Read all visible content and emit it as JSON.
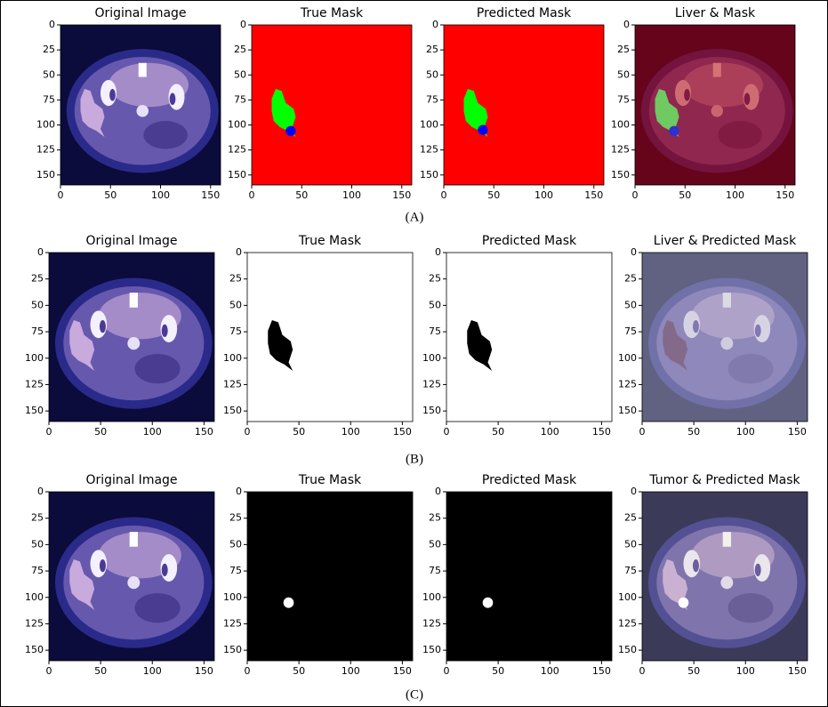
{
  "axes": {
    "xticks": [
      0,
      50,
      100,
      150
    ],
    "yticks": [
      0,
      25,
      50,
      75,
      100,
      125,
      150
    ]
  },
  "rows": [
    {
      "caption": "(A)",
      "panels": [
        {
          "title": "Original Image"
        },
        {
          "title": "True Mask"
        },
        {
          "title": "Predicted Mask"
        },
        {
          "title": "Liver & Mask"
        }
      ]
    },
    {
      "caption": "(B)",
      "panels": [
        {
          "title": "Original Image"
        },
        {
          "title": "True Mask"
        },
        {
          "title": "Predicted Mask"
        },
        {
          "title": "Liver & Predicted Mask"
        }
      ]
    },
    {
      "caption": "(C)",
      "panels": [
        {
          "title": "Original Image"
        },
        {
          "title": "True Mask"
        },
        {
          "title": "Predicted Mask"
        },
        {
          "title": "Tumor & Predicted Mask"
        }
      ]
    }
  ]
}
